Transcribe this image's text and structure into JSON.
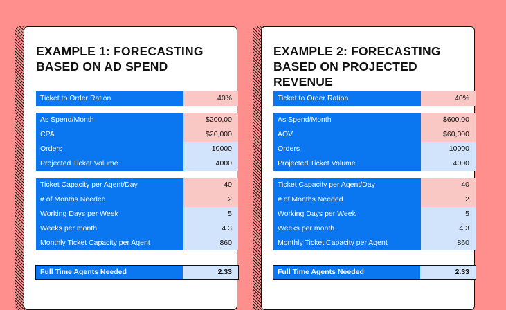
{
  "cards": [
    {
      "title": "EXAMPLE 1: FORECASTING BASED ON AD SPEND",
      "ratio": {
        "label": "Ticket to Order Ration",
        "value": "40%"
      },
      "g2": [
        {
          "label": "As Spend/Month",
          "value": "$200,00"
        },
        {
          "label": "CPA",
          "value": "$20,000"
        },
        {
          "label": "Orders",
          "value": "10000"
        },
        {
          "label": "Projected Ticket Volume",
          "value": "4000"
        }
      ],
      "g3": [
        {
          "label": "Ticket Capacity per Agent/Day",
          "value": "40"
        },
        {
          "label": "# of Months Needed",
          "value": "2"
        },
        {
          "label": "Working Days per Week",
          "value": "5"
        },
        {
          "label": "Weeks per month",
          "value": "4.3"
        },
        {
          "label": "Monthly Ticket Capacity per Agent",
          "value": "860"
        }
      ],
      "total": {
        "label": "Full Time Agents Needed",
        "value": "2.33"
      }
    },
    {
      "title": "EXAMPLE 2: FORECASTING BASED ON PROJECTED REVENUE",
      "ratio": {
        "label": "Ticket to Order Ration",
        "value": "40%"
      },
      "g2": [
        {
          "label": "As Spend/Month",
          "value": "$600,00"
        },
        {
          "label": "AOV",
          "value": "$60,000"
        },
        {
          "label": "Orders",
          "value": "10000"
        },
        {
          "label": "Projected Ticket Volume",
          "value": "4000"
        }
      ],
      "g3": [
        {
          "label": "Ticket Capacity per Agent/Day",
          "value": "40"
        },
        {
          "label": "# of Months Needed",
          "value": "2"
        },
        {
          "label": "Working Days per Week",
          "value": "5"
        },
        {
          "label": "Weeks per month",
          "value": "4.3"
        },
        {
          "label": "Monthly Ticket Capacity per Agent",
          "value": "860"
        }
      ],
      "total": {
        "label": "Full Time Agents Needed",
        "value": "2.33"
      }
    }
  ]
}
